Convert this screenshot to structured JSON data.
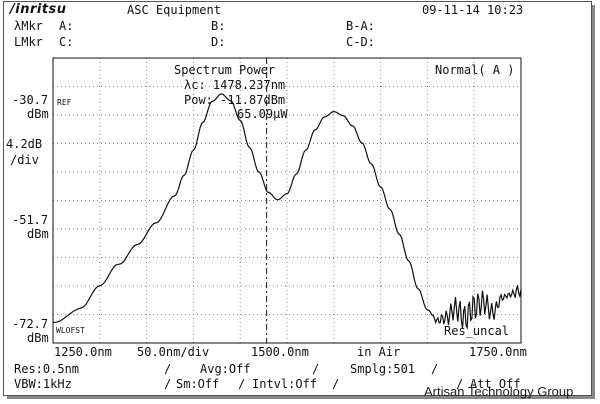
{
  "header": {
    "brand": "/inritsu",
    "title": "ASC Equipment",
    "datetime": "09-11-14 10:23",
    "lambda_mkr": "λMkr",
    "l_mkr": "LMkr",
    "mkr_a": "A:",
    "mkr_b": "B:",
    "mkr_c": "C:",
    "mkr_d": "D:",
    "mkr_ba": "B-A:",
    "mkr_cd": "C-D:"
  },
  "measurement": {
    "title": "Spectrum Power",
    "center_wavelength": "λc: 1478.237nm",
    "power_dbm": "Pow: -11.87dBm",
    "power_uw": "65.09μW",
    "mode": "Normal( A )",
    "res_status": "Res_uncal"
  },
  "y_axis": {
    "ref_value": "-30.7",
    "ref_unit": "dBm",
    "ref_tag": "REF",
    "scale_value": "4.2dB",
    "scale_unit": "/div",
    "mid_value": "-51.7",
    "mid_unit": "dBm",
    "bottom_value": "-72.7",
    "bottom_unit": "dBm",
    "offset_tag": "WLOFST"
  },
  "x_axis": {
    "start": "1250.0nm",
    "span_div": "50.0nm/div",
    "center": "1500.0nm",
    "medium": "in Air",
    "stop": "1750.0nm"
  },
  "settings": {
    "res": "Res:0.5nm",
    "vbw": "VBW:1kHz",
    "avg": "Avg:Off",
    "sm": "Sm:Off",
    "intvl": "Intvl:Off",
    "smplg": "Smplg:501",
    "att": "Att Off"
  },
  "watermark": "Artisan Technology Group",
  "trace": {
    "type": "line",
    "x_unit": "nm",
    "y_unit": "dBm",
    "xlim": [
      1250,
      1750
    ],
    "ylim": [
      -72.7,
      -30.7
    ],
    "x": [
      1250,
      1280,
      1300,
      1320,
      1340,
      1360,
      1380,
      1390,
      1400,
      1410,
      1420,
      1430,
      1440,
      1450,
      1460,
      1470,
      1480,
      1490,
      1500,
      1510,
      1520,
      1530,
      1540,
      1550,
      1560,
      1570,
      1580,
      1590,
      1600,
      1610,
      1620,
      1630,
      1640,
      1650,
      1660,
      1670,
      1680,
      1690,
      1700,
      1710,
      1720,
      1730,
      1740,
      1750
    ],
    "y": [
      -69.5,
      -67.5,
      -64.5,
      -61.2,
      -58.2,
      -55.0,
      -51.0,
      -48.0,
      -44.3,
      -40.2,
      -37.1,
      -36.0,
      -37.0,
      -39.9,
      -43.9,
      -47.5,
      -50.5,
      -51.6,
      -50.7,
      -47.8,
      -44.3,
      -41.3,
      -39.4,
      -38.6,
      -39.2,
      -40.7,
      -43.2,
      -46.3,
      -49.7,
      -53.0,
      -56.7,
      -60.6,
      -64.7,
      -67.8,
      -69.4,
      -69.0,
      -67.6,
      -69.0,
      -67.4,
      -66.7,
      -68.2,
      -66.0,
      -65.5,
      -64.8
    ]
  },
  "marker_line": {
    "x": 1478.237
  }
}
